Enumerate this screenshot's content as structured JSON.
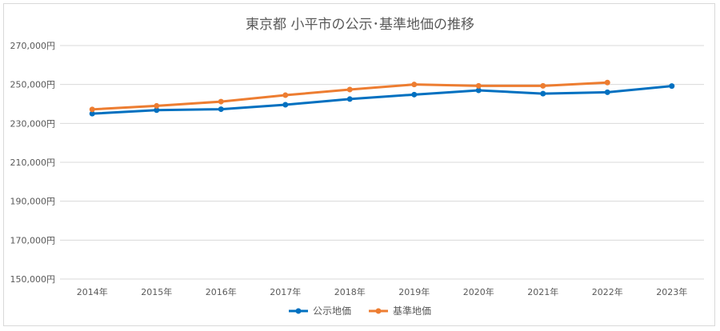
{
  "chart_data": {
    "type": "line",
    "title": "東京都 小平市の公示･基準地価の推移",
    "xlabel": "",
    "ylabel": "",
    "categories": [
      "2014年",
      "2015年",
      "2016年",
      "2017年",
      "2018年",
      "2019年",
      "2020年",
      "2021年",
      "2022年",
      "2023年"
    ],
    "ylim": [
      150000,
      270000
    ],
    "yticks": [
      150000,
      170000,
      190000,
      210000,
      230000,
      250000,
      270000
    ],
    "ytick_labels": [
      "150,000円",
      "170,000円",
      "190,000円",
      "210,000円",
      "230,000円",
      "250,000円",
      "270,000円"
    ],
    "grid": true,
    "legend_position": "bottom",
    "series": [
      {
        "name": "公示地価",
        "color": "#0070c0",
        "values": [
          235000,
          236800,
          237300,
          239600,
          242500,
          244800,
          247000,
          245300,
          246000,
          249200
        ]
      },
      {
        "name": "基準地価",
        "color": "#ed7d31",
        "values": [
          237200,
          239000,
          241200,
          244500,
          247400,
          250000,
          249300,
          249300,
          251000,
          null
        ]
      }
    ]
  }
}
